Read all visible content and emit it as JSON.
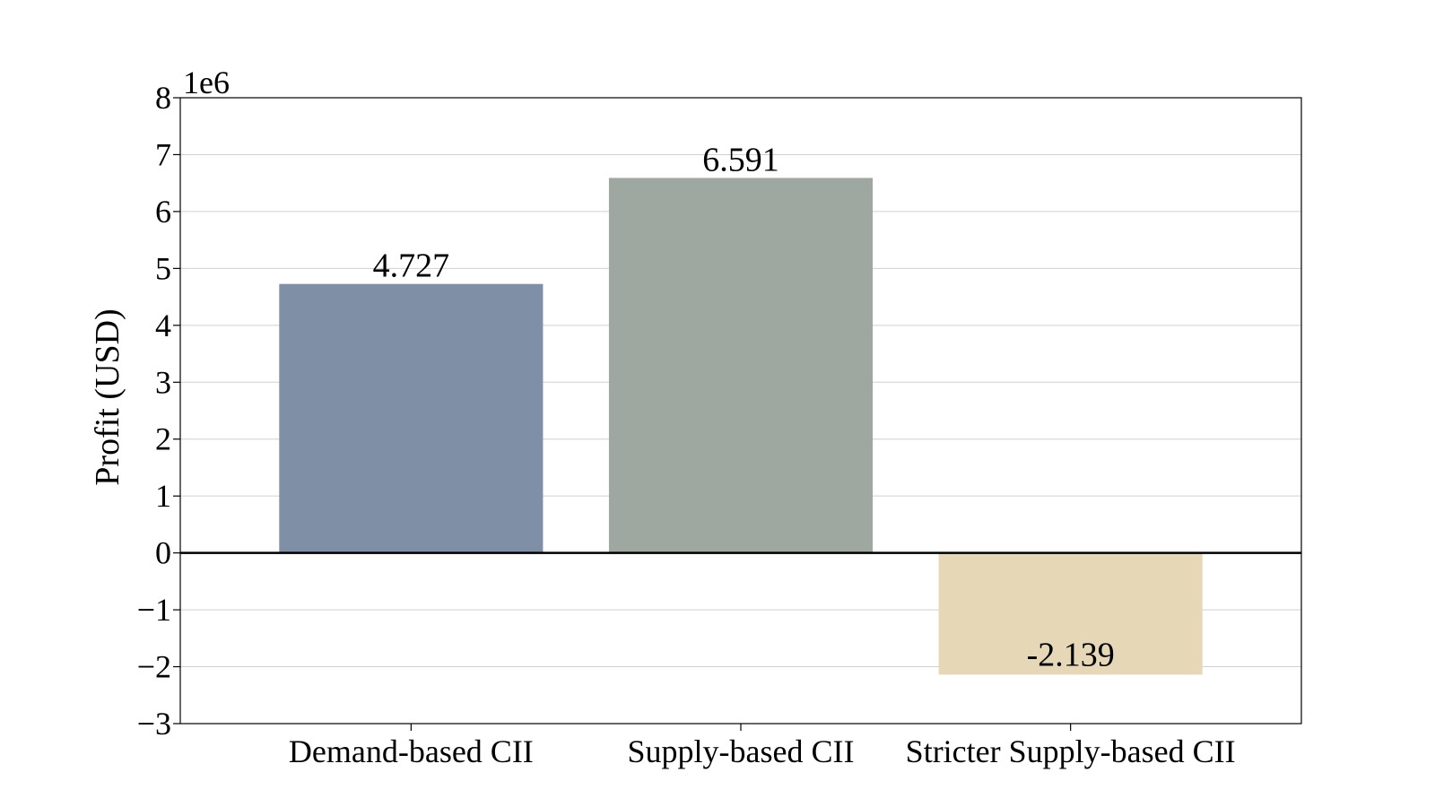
{
  "chart_data": {
    "type": "bar",
    "categories": [
      "Demand-based CII",
      "Supply-based CII",
      "Stricter Supply-based CII"
    ],
    "values": [
      4.727,
      6.591,
      -2.139
    ],
    "bar_labels": [
      "4.727",
      "6.591",
      "-2.139"
    ],
    "bar_colors": [
      "#7f8fa6",
      "#9ea8a0",
      "#e6d7b6"
    ],
    "ylabel": "Profit (USD)",
    "xlabel": "",
    "scale_note": "1e6",
    "ylim": [
      -3,
      8
    ],
    "yticks": [
      -3,
      -2,
      -1,
      0,
      1,
      2,
      3,
      4,
      5,
      6,
      7,
      8
    ],
    "ytick_labels": [
      "−3",
      "−2",
      "−1",
      "0",
      "1",
      "2",
      "3",
      "4",
      "5",
      "6",
      "7",
      "8"
    ],
    "grid": true,
    "zero_line": true
  }
}
